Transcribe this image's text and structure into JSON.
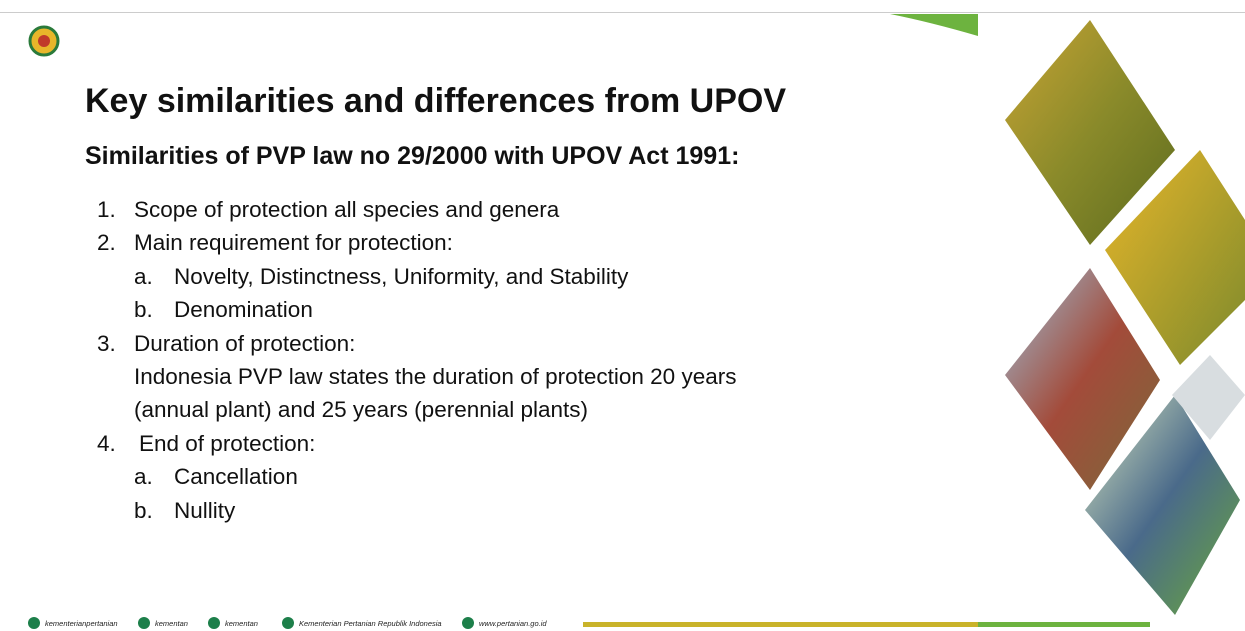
{
  "slide": {
    "title": "Key similarities and differences from UPOV",
    "subtitle": "Similarities of PVP law no 29/2000 with UPOV Act 1991:",
    "items": [
      {
        "number": "1.",
        "text": "Scope of protection all species and genera"
      },
      {
        "number": "2.",
        "text": "Main requirement for protection:",
        "subitems": [
          {
            "letter": "a.",
            "text": "Novelty, Distinctness, Uniformity, and Stability"
          },
          {
            "letter": "b.",
            "text": "Denomination"
          }
        ]
      },
      {
        "number": "3.",
        "text": "Duration of protection:",
        "lines": [
          "Indonesia PVP law states the duration of protection 20 years",
          "(annual plant) and 25 years (perennial plants)"
        ]
      },
      {
        "number": "4.",
        "text": "End of protection:",
        "subitems": [
          {
            "letter": "a.",
            "text": "Cancellation"
          },
          {
            "letter": "b.",
            "text": "Nullity"
          }
        ]
      }
    ],
    "footer": [
      "kementerianpertanian",
      "kementan",
      "kementan",
      "Kementerian Pertanian Republik Indonesia",
      "www.pertanian.go.id"
    ]
  }
}
